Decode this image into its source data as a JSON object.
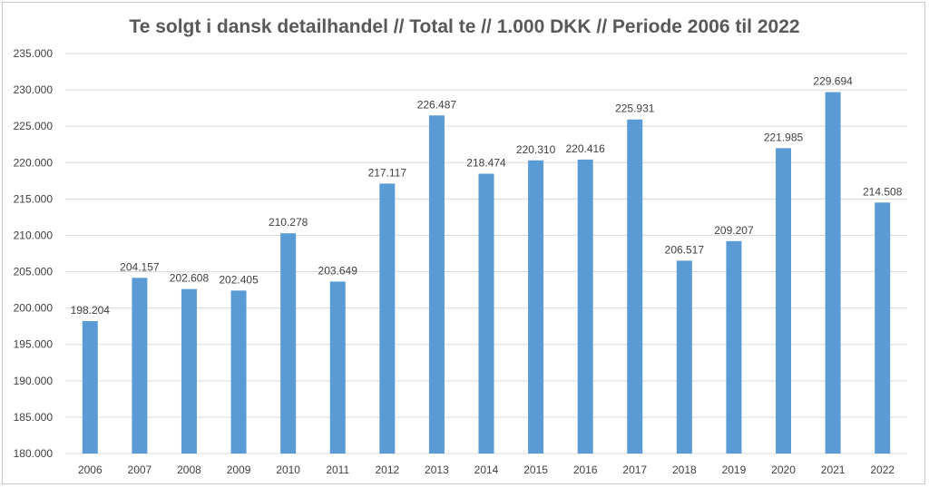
{
  "chart_data": {
    "type": "bar",
    "title": "Te solgt i dansk detailhandel // Total te // 1.000 DKK // Periode 2006 til 2022",
    "xlabel": "",
    "ylabel": "",
    "ylim": [
      180000,
      235000
    ],
    "yticks": [
      180000,
      185000,
      190000,
      195000,
      200000,
      205000,
      210000,
      215000,
      220000,
      225000,
      230000,
      235000
    ],
    "ytick_labels": [
      "180.000",
      "185.000",
      "190.000",
      "195.000",
      "200.000",
      "205.000",
      "210.000",
      "215.000",
      "220.000",
      "225.000",
      "230.000",
      "235.000"
    ],
    "categories": [
      "2006",
      "2007",
      "2008",
      "2009",
      "2010",
      "2011",
      "2012",
      "2013",
      "2014",
      "2015",
      "2016",
      "2017",
      "2018",
      "2019",
      "2020",
      "2021",
      "2022"
    ],
    "values": [
      198204,
      204157,
      202608,
      202405,
      210278,
      203649,
      217117,
      226487,
      218474,
      220310,
      220416,
      225931,
      206517,
      209207,
      221985,
      229694,
      214508
    ],
    "value_labels": [
      "198.204",
      "204.157",
      "202.608",
      "202.405",
      "210.278",
      "203.649",
      "217.117",
      "226.487",
      "218.474",
      "220.310",
      "220.416",
      "225.931",
      "206.517",
      "209.207",
      "221.985",
      "229.694",
      "214.508"
    ],
    "grid": true,
    "legend": "none",
    "bar_color": "#5b9bd5",
    "grid_color": "#d9d9d9"
  }
}
